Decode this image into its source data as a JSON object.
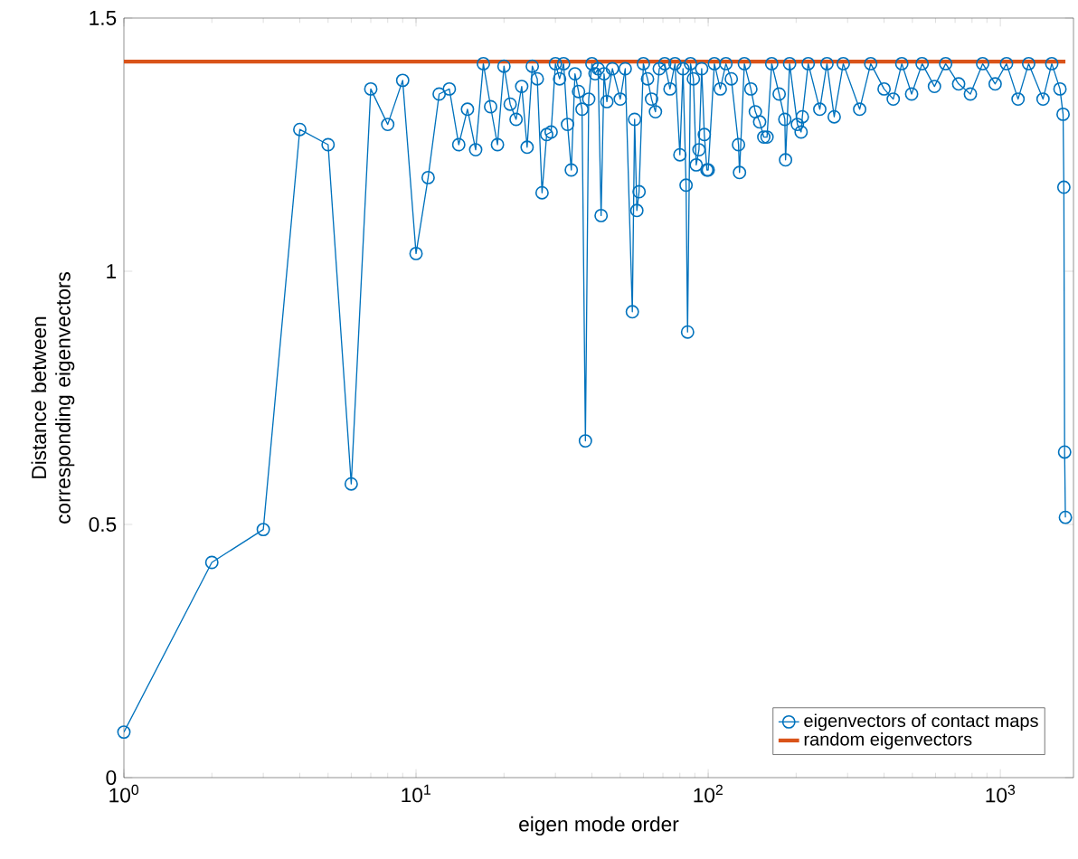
{
  "chart_data": {
    "type": "line",
    "xlabel": "eigen mode order",
    "ylabel": "Distance between corresponding eigenvectors",
    "log": "x",
    "legend": "bottom right",
    "xlim": [
      1,
      1780
    ],
    "ylim": [
      0,
      1.5
    ],
    "xticks": [
      {
        "value": 1,
        "label": "10$^{0}$"
      },
      {
        "value": 10,
        "label": "10$^{1}$"
      },
      {
        "value": 100,
        "label": "10$^{2}$"
      },
      {
        "value": 1000,
        "label": "10$^{3}$"
      }
    ],
    "yticks": [
      0,
      0.5,
      1,
      1.5
    ],
    "series": [
      {
        "name": "eigenvectors of contact maps",
        "color": "#0072bd",
        "marker": "circle",
        "x": [
          1,
          2,
          3,
          4,
          5,
          6,
          7,
          8,
          9,
          10,
          11,
          12,
          13,
          14,
          15,
          16,
          17,
          18,
          19,
          20,
          21,
          22,
          23,
          24,
          25,
          26,
          27,
          28,
          29,
          30,
          31,
          32,
          33,
          34,
          35,
          36,
          37,
          38,
          39,
          40,
          41,
          42,
          43,
          44,
          45,
          47,
          50,
          52,
          55,
          56,
          57,
          58,
          60,
          62,
          64,
          66,
          68,
          71,
          74,
          77,
          80,
          82,
          84,
          85,
          87,
          89,
          91,
          93,
          95,
          97,
          99,
          100,
          105,
          110,
          115,
          120,
          127,
          128,
          133,
          140,
          145,
          150,
          155,
          159,
          165,
          175,
          183,
          184,
          190,
          202,
          208,
          210,
          220,
          241,
          255,
          270,
          290,
          330,
          360,
          400,
          430,
          460,
          497,
          540,
          595,
          650,
          720,
          790,
          870,
          960,
          1050,
          1150,
          1250,
          1400,
          1500,
          1600,
          1640,
          1650,
          1660,
          1670
        ],
        "values": [
          0.09,
          0.425,
          0.49,
          1.28,
          1.25,
          0.58,
          1.36,
          1.29,
          1.377,
          1.035,
          1.185,
          1.35,
          1.36,
          1.25,
          1.32,
          1.24,
          1.41,
          1.325,
          1.25,
          1.405,
          1.33,
          1.3,
          1.365,
          1.245,
          1.405,
          1.38,
          1.155,
          1.27,
          1.275,
          1.41,
          1.38,
          1.41,
          1.29,
          1.2,
          1.39,
          1.355,
          1.32,
          0.665,
          1.34,
          1.41,
          1.39,
          1.4,
          1.11,
          1.39,
          1.335,
          1.4,
          1.34,
          1.4,
          0.92,
          1.3,
          1.12,
          1.157,
          1.41,
          1.38,
          1.34,
          1.315,
          1.4,
          1.41,
          1.36,
          1.41,
          1.23,
          1.4,
          1.17,
          0.88,
          1.41,
          1.38,
          1.21,
          1.24,
          1.4,
          1.27,
          1.2,
          1.2,
          1.41,
          1.36,
          1.41,
          1.38,
          1.25,
          1.195,
          1.41,
          1.36,
          1.315,
          1.295,
          1.265,
          1.265,
          1.41,
          1.35,
          1.3,
          1.22,
          1.41,
          1.29,
          1.275,
          1.305,
          1.41,
          1.32,
          1.41,
          1.305,
          1.41,
          1.32,
          1.41,
          1.36,
          1.34,
          1.41,
          1.35,
          1.41,
          1.365,
          1.41,
          1.37,
          1.35,
          1.41,
          1.37,
          1.41,
          1.34,
          1.41,
          1.34,
          1.41,
          1.36,
          1.31,
          1.166,
          0.643,
          0.514
        ]
      },
      {
        "name": "random eigenvectors",
        "color": "#d95319",
        "marker": "none",
        "x": [
          1,
          1670
        ],
        "values": [
          1.414,
          1.414
        ]
      }
    ]
  }
}
